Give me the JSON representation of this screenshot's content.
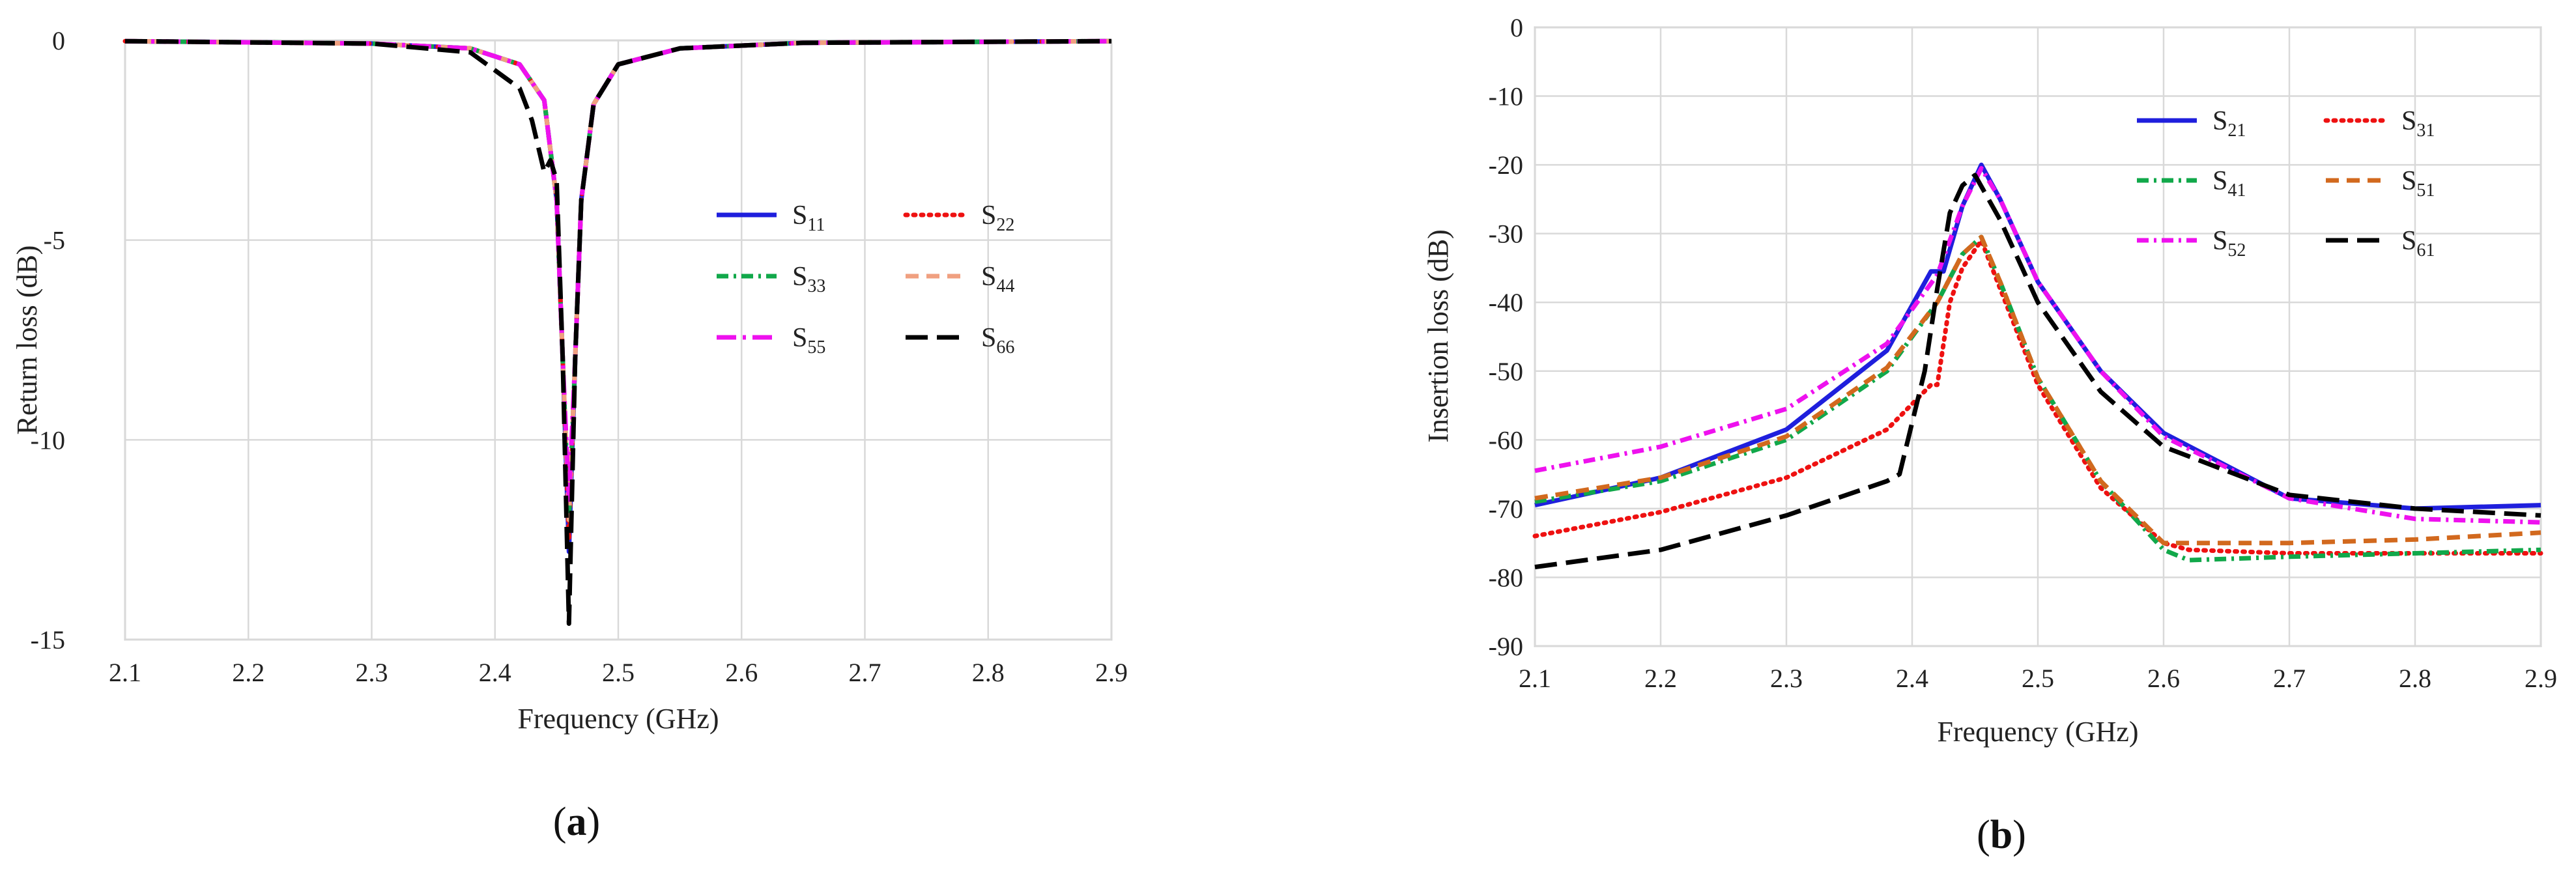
{
  "chart_data": [
    {
      "type": "line",
      "panel_label": "a",
      "xlabel": "Frequency (GHz)",
      "ylabel": "Return loss (dB)",
      "xlim": [
        2.1,
        2.9
      ],
      "ylim": [
        -15,
        0
      ],
      "xticks": [
        "2.1",
        "2.2",
        "2.3",
        "2.4",
        "2.5",
        "2.6",
        "2.7",
        "2.8",
        "2.9"
      ],
      "yticks": [
        "0",
        "-5",
        "-10",
        "-15"
      ],
      "grid": true,
      "legend_position": "right",
      "series": [
        {
          "name": "S",
          "sub": "11",
          "color": "#1f1fdd",
          "dash": "solid",
          "x": [
            2.1,
            2.3,
            2.38,
            2.42,
            2.44,
            2.45,
            2.455,
            2.46,
            2.465,
            2.47,
            2.48,
            2.5,
            2.55,
            2.65,
            2.9
          ],
          "values": [
            -0.02,
            -0.08,
            -0.2,
            -0.6,
            -1.5,
            -4.0,
            -8.0,
            -12.8,
            -8.0,
            -4.0,
            -1.6,
            -0.6,
            -0.2,
            -0.06,
            -0.02
          ]
        },
        {
          "name": "S",
          "sub": "22",
          "color": "#ee1111",
          "dash": "dot",
          "x": [
            2.1,
            2.3,
            2.38,
            2.42,
            2.44,
            2.45,
            2.455,
            2.46,
            2.465,
            2.47,
            2.48,
            2.5,
            2.55,
            2.65,
            2.9
          ],
          "values": [
            -0.02,
            -0.08,
            -0.2,
            -0.6,
            -1.5,
            -4.0,
            -8.0,
            -12.5,
            -8.0,
            -4.0,
            -1.6,
            -0.6,
            -0.2,
            -0.06,
            -0.02
          ]
        },
        {
          "name": "S",
          "sub": "33",
          "color": "#11a84a",
          "dash": "dashdot",
          "x": [
            2.1,
            2.3,
            2.38,
            2.42,
            2.44,
            2.45,
            2.455,
            2.46,
            2.465,
            2.47,
            2.48,
            2.5,
            2.55,
            2.65,
            2.9
          ],
          "values": [
            -0.02,
            -0.08,
            -0.2,
            -0.6,
            -1.5,
            -4.0,
            -8.0,
            -12.0,
            -8.0,
            -4.0,
            -1.6,
            -0.6,
            -0.2,
            -0.06,
            -0.02
          ]
        },
        {
          "name": "S",
          "sub": "44",
          "color": "#f0a080",
          "dash": "dash",
          "x": [
            2.1,
            2.3,
            2.38,
            2.42,
            2.44,
            2.45,
            2.455,
            2.46,
            2.465,
            2.47,
            2.48,
            2.5,
            2.55,
            2.65,
            2.9
          ],
          "values": [
            -0.02,
            -0.08,
            -0.2,
            -0.6,
            -1.5,
            -4.0,
            -8.0,
            -12.0,
            -8.0,
            -4.0,
            -1.6,
            -0.6,
            -0.2,
            -0.06,
            -0.02
          ]
        },
        {
          "name": "S",
          "sub": "55",
          "color": "#ee11ee",
          "dash": "longdashdot",
          "x": [
            2.1,
            2.3,
            2.38,
            2.42,
            2.44,
            2.45,
            2.455,
            2.46,
            2.465,
            2.47,
            2.48,
            2.5,
            2.55,
            2.65,
            2.9
          ],
          "values": [
            -0.02,
            -0.08,
            -0.2,
            -0.6,
            -1.5,
            -4.0,
            -8.0,
            -11.5,
            -8.0,
            -4.0,
            -1.6,
            -0.6,
            -0.2,
            -0.06,
            -0.02
          ]
        },
        {
          "name": "S",
          "sub": "66",
          "color": "#000000",
          "dash": "longdash",
          "x": [
            2.1,
            2.3,
            2.38,
            2.42,
            2.43,
            2.44,
            2.445,
            2.45,
            2.455,
            2.46,
            2.465,
            2.47,
            2.48,
            2.5,
            2.55,
            2.65,
            2.9
          ],
          "values": [
            -0.02,
            -0.08,
            -0.3,
            -1.2,
            -2.0,
            -3.3,
            -3.0,
            -3.5,
            -8.0,
            -14.6,
            -8.0,
            -4.0,
            -1.6,
            -0.6,
            -0.2,
            -0.06,
            -0.02
          ]
        }
      ]
    },
    {
      "type": "line",
      "panel_label": "b",
      "xlabel": "Frequency (GHz)",
      "ylabel": "Insertion loss (dB)",
      "xlim": [
        2.1,
        2.9
      ],
      "ylim": [
        -90,
        0
      ],
      "xticks": [
        "2.1",
        "2.2",
        "2.3",
        "2.4",
        "2.5",
        "2.6",
        "2.7",
        "2.8",
        "2.9"
      ],
      "yticks": [
        "0",
        "-10",
        "-20",
        "-30",
        "-40",
        "-50",
        "-60",
        "-70",
        "-80",
        "-90"
      ],
      "grid": true,
      "legend_position": "top-right",
      "series": [
        {
          "name": "S",
          "sub": "21",
          "color": "#1f1fdd",
          "dash": "solid",
          "x": [
            2.1,
            2.2,
            2.3,
            2.38,
            2.415,
            2.425,
            2.44,
            2.455,
            2.47,
            2.5,
            2.55,
            2.6,
            2.7,
            2.8,
            2.9
          ],
          "values": [
            -69.5,
            -65.5,
            -58.5,
            -47,
            -35.5,
            -35.5,
            -26,
            -20,
            -25,
            -37,
            -50,
            -59,
            -68.5,
            -70,
            -69.5
          ]
        },
        {
          "name": "S",
          "sub": "31",
          "color": "#ee1111",
          "dash": "dot",
          "x": [
            2.1,
            2.2,
            2.3,
            2.38,
            2.415,
            2.42,
            2.43,
            2.44,
            2.455,
            2.47,
            2.5,
            2.55,
            2.6,
            2.62,
            2.7,
            2.9
          ],
          "values": [
            -74,
            -70.5,
            -65.5,
            -58.5,
            -52,
            -52,
            -40,
            -35,
            -31,
            -38,
            -52,
            -67,
            -75,
            -76,
            -76.5,
            -76.5
          ]
        },
        {
          "name": "S",
          "sub": "41",
          "color": "#11a84a",
          "dash": "dashdot",
          "x": [
            2.1,
            2.2,
            2.3,
            2.38,
            2.42,
            2.44,
            2.455,
            2.47,
            2.5,
            2.55,
            2.6,
            2.62,
            2.7,
            2.9
          ],
          "values": [
            -69,
            -66,
            -60,
            -50,
            -40,
            -33,
            -30.5,
            -37,
            -51,
            -66,
            -76,
            -77.5,
            -77,
            -76
          ]
        },
        {
          "name": "S",
          "sub": "51",
          "color": "#d2691e",
          "dash": "dash",
          "x": [
            2.1,
            2.2,
            2.3,
            2.38,
            2.42,
            2.44,
            2.455,
            2.47,
            2.5,
            2.55,
            2.6,
            2.7,
            2.8,
            2.9
          ],
          "values": [
            -68.5,
            -65.5,
            -59.5,
            -49.5,
            -40,
            -33,
            -30.5,
            -37,
            -51,
            -66,
            -75,
            -75,
            -74.5,
            -73.5
          ]
        },
        {
          "name": "S",
          "sub": "52",
          "color": "#ee11ee",
          "dash": "dashdot",
          "x": [
            2.1,
            2.2,
            2.3,
            2.38,
            2.42,
            2.44,
            2.455,
            2.47,
            2.5,
            2.55,
            2.6,
            2.7,
            2.8,
            2.9
          ],
          "values": [
            -64.5,
            -61,
            -55.5,
            -46,
            -36,
            -26,
            -20.5,
            -25,
            -37,
            -50,
            -59.5,
            -68.5,
            -71.5,
            -72
          ]
        },
        {
          "name": "S",
          "sub": "61",
          "color": "#000000",
          "dash": "longdash",
          "x": [
            2.1,
            2.2,
            2.3,
            2.38,
            2.39,
            2.41,
            2.42,
            2.43,
            2.44,
            2.45,
            2.47,
            2.5,
            2.55,
            2.6,
            2.7,
            2.8,
            2.9
          ],
          "values": [
            -78.5,
            -76,
            -71,
            -66,
            -65,
            -50,
            -38,
            -27,
            -23,
            -21.5,
            -28,
            -40,
            -53,
            -61,
            -68,
            -70,
            -71
          ]
        }
      ]
    }
  ]
}
